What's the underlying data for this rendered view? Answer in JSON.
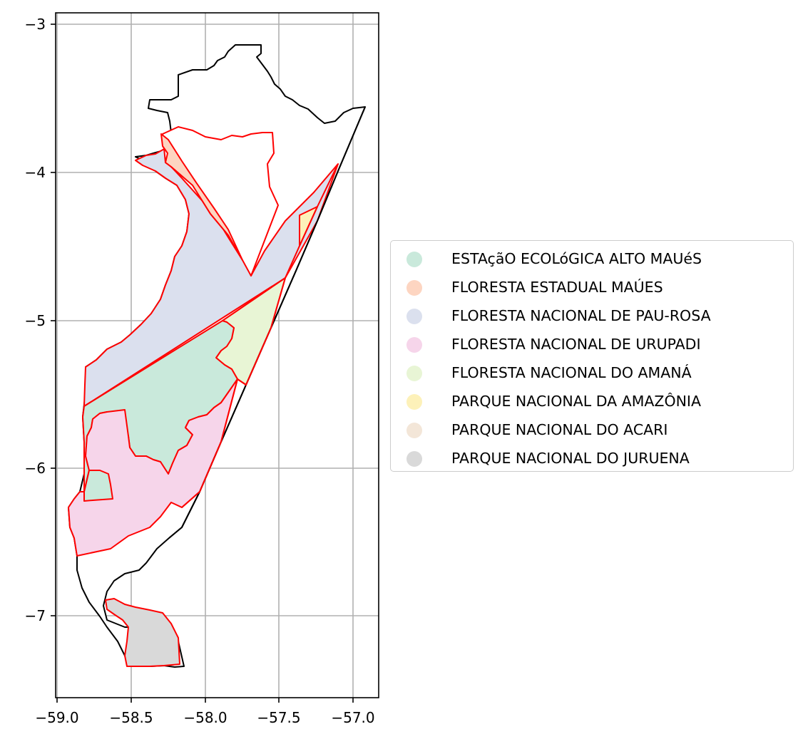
{
  "map": {
    "x_ticks": [
      "−59.0",
      "−58.5",
      "−58.0",
      "−57.5",
      "−57.0"
    ],
    "y_ticks": [
      "−3",
      "−4",
      "−5",
      "−6",
      "−7"
    ],
    "grid": true,
    "outline_color": "#000000",
    "area_edge_color": "#ff0000"
  },
  "legend": {
    "placement": "center-right",
    "items": [
      {
        "label": "ESTAçãO ECOLóGICA ALTO MAUéS",
        "color": "#c9e9db"
      },
      {
        "label": "FLORESTA ESTADUAL MAÚES",
        "color": "#fdd5c1"
      },
      {
        "label": "FLORESTA NACIONAL DE PAU-ROSA",
        "color": "#dbe0ee"
      },
      {
        "label": "FLORESTA NACIONAL DE URUPADI",
        "color": "#f6d5ea"
      },
      {
        "label": "FLORESTA NACIONAL DO AMANÁ",
        "color": "#e8f5d5"
      },
      {
        "label": "PARQUE NACIONAL DA AMAZÔNIA",
        "color": "#fdf1b9"
      },
      {
        "label": "PARQUE NACIONAL DO ACARI",
        "color": "#f3e6d8"
      },
      {
        "label": "PARQUE NACIONAL DO JURUENA",
        "color": "#d9d9d9"
      }
    ]
  }
}
